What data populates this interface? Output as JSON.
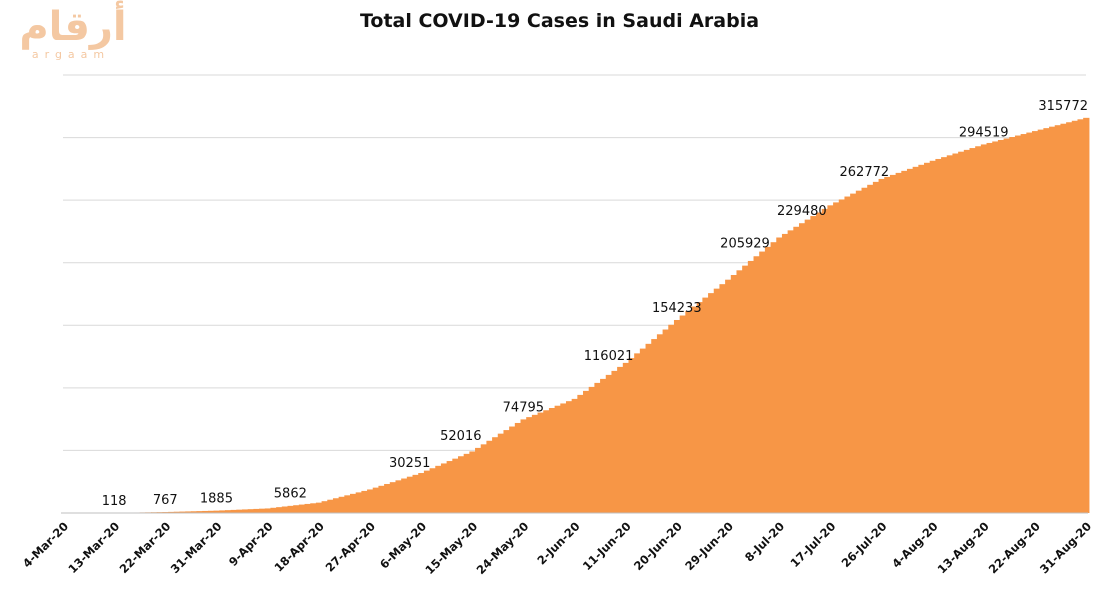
{
  "logo": {
    "arabic": "أرقام",
    "latin": "argaam"
  },
  "chart_data": {
    "type": "area",
    "title": "Total COVID-19 Cases in Saudi Arabia",
    "xlabel": "",
    "ylabel": "",
    "ylim": [
      0,
      350000
    ],
    "grid": true,
    "fill_color": "#F79646",
    "x_start": "2020-03-04",
    "x_end": "2020-08-31",
    "categories": [
      "4-Mar-20",
      "13-Mar-20",
      "22-Mar-20",
      "31-Mar-20",
      "9-Apr-20",
      "18-Apr-20",
      "27-Apr-20",
      "6-May-20",
      "15-May-20",
      "24-May-20",
      "2-Jun-20",
      "11-Jun-20",
      "20-Jun-20",
      "29-Jun-20",
      "8-Jul-20",
      "17-Jul-20",
      "26-Jul-20",
      "4-Aug-20",
      "13-Aug-20",
      "22-Aug-20",
      "31-Aug-20"
    ],
    "values": [
      1,
      118,
      767,
      1885,
      3651,
      8274,
      18811,
      31938,
      49176,
      74795,
      91182,
      119942,
      154233,
      186436,
      220144,
      245851,
      266941,
      281456,
      294519,
      305186,
      315772
    ],
    "data_labels": [
      {
        "date": "13-Mar-20",
        "value": 118
      },
      {
        "date": "22-Mar-20",
        "value": 767
      },
      {
        "date": "31-Mar-20",
        "value": 1885
      },
      {
        "date": "13-Apr-20",
        "value": 5862
      },
      {
        "date": "4-May-20",
        "value": 30251
      },
      {
        "date": "13-May-20",
        "value": 52016
      },
      {
        "date": "24-May-20",
        "value": 74795
      },
      {
        "date": "8-Jun-20",
        "value": 116021
      },
      {
        "date": "20-Jun-20",
        "value": 154233
      },
      {
        "date": "2-Jul-20",
        "value": 205929
      },
      {
        "date": "12-Jul-20",
        "value": 229480
      },
      {
        "date": "23-Jul-20",
        "value": 262772
      },
      {
        "date": "13-Aug-20",
        "value": 294519
      },
      {
        "date": "31-Aug-20",
        "value": 315772
      }
    ]
  }
}
